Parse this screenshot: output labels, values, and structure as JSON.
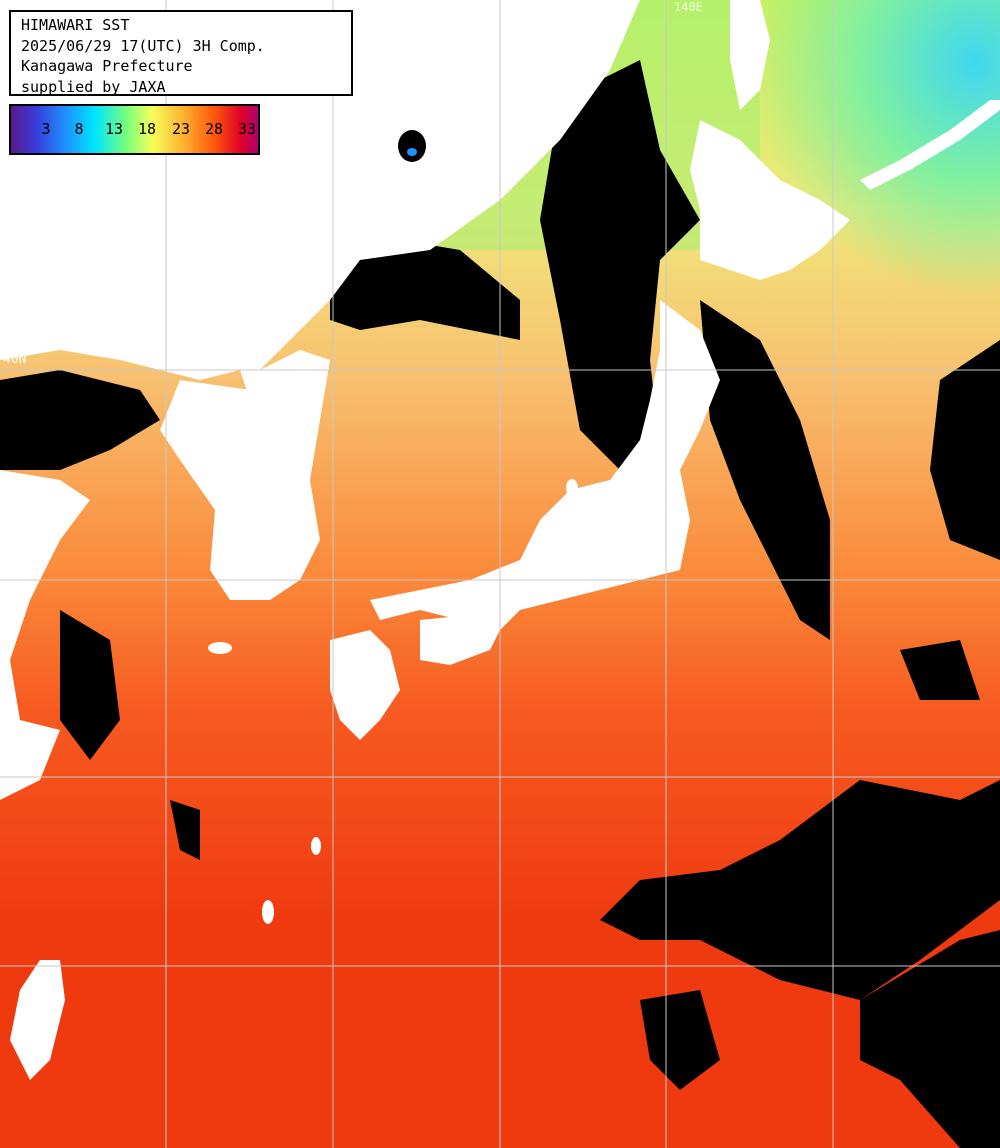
{
  "header": {
    "lines": [
      "HIMAWARI SST",
      "2025/06/29 17(UTC) 3H Comp.",
      "Kanagawa Prefecture",
      "supplied by JAXA"
    ]
  },
  "legend": {
    "unit": "",
    "ticks": [
      "3",
      "8",
      "13",
      "18",
      "23",
      "28",
      "33"
    ],
    "colors": [
      "#5a1a8c",
      "#1e90ff",
      "#00e5ff",
      "#7cff7c",
      "#f5ff5a",
      "#ffb030",
      "#ff5a0a",
      "#e0002a",
      "#b0006e"
    ]
  },
  "grid": {
    "lat_label": "40N",
    "lon_label": "140E"
  },
  "map": {
    "land_color": "#ffffff",
    "cloud_color": "#000000",
    "grid_color": "#c8c8c8"
  }
}
